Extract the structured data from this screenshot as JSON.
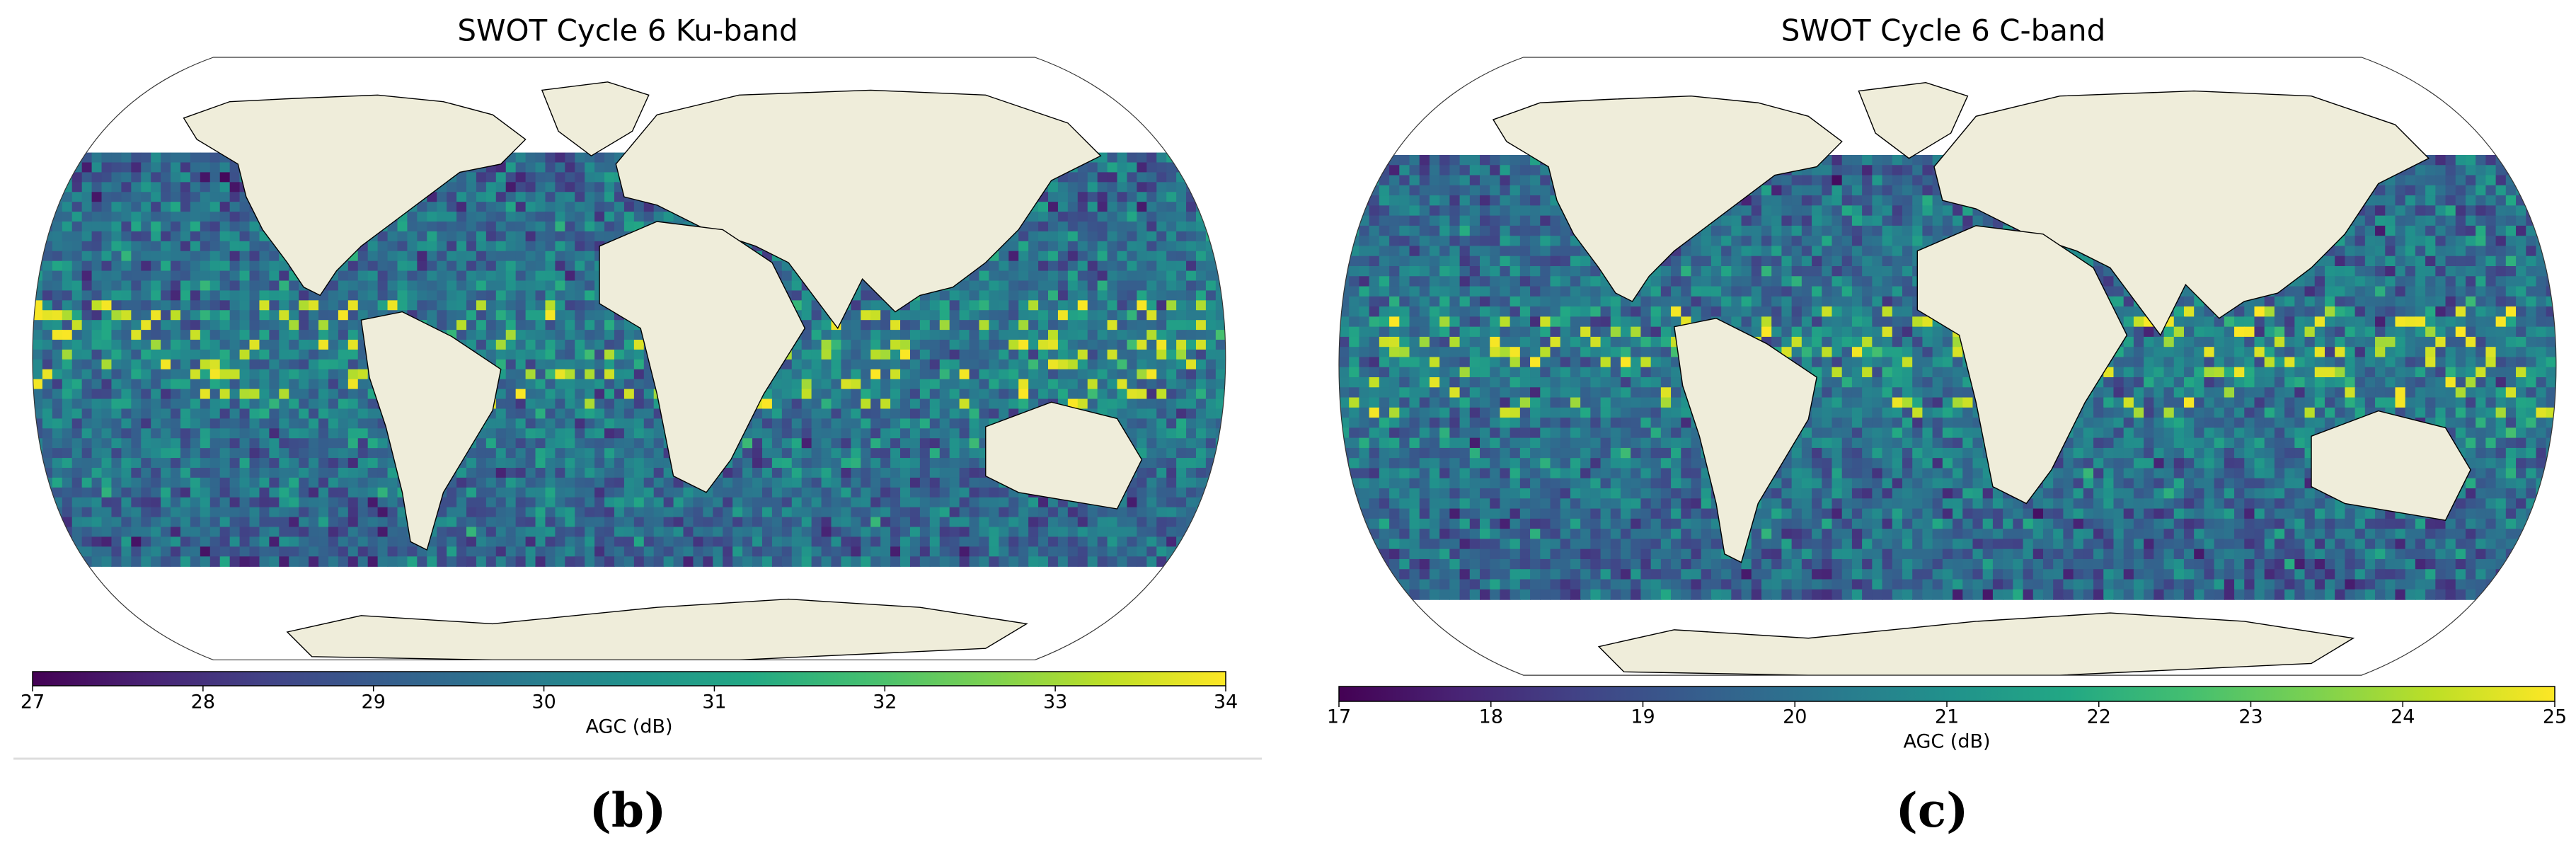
{
  "chart_data": [
    {
      "type": "map",
      "title": "SWOT Cycle 6 Ku-band",
      "panel_label": "(b)",
      "colorbar": {
        "label": "AGC (dB)",
        "colormap": "viridis",
        "lim": [
          27,
          34
        ],
        "ticks": [
          27,
          28,
          29,
          30,
          31,
          32,
          33,
          34
        ]
      }
    },
    {
      "type": "map",
      "title": "SWOT Cycle 6 C-band",
      "panel_label": "(c)",
      "colorbar": {
        "label": "AGC (dB)",
        "colormap": "viridis",
        "lim": [
          17,
          25
        ],
        "ticks": [
          17,
          18,
          19,
          20,
          21,
          22,
          23,
          24,
          25
        ]
      }
    }
  ]
}
